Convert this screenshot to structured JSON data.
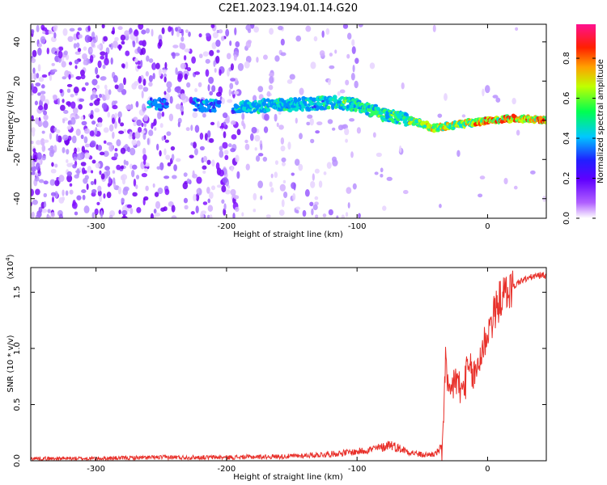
{
  "title": "C2E1.2023.194.01.14.G20",
  "chart_data": [
    {
      "type": "heatmap",
      "xlabel": "Height of straight line (km)",
      "ylabel": "Frequency (Hz)",
      "xlim": [
        -350,
        45
      ],
      "ylim": [
        -50,
        49
      ],
      "xticks": [
        -300,
        -200,
        -100,
        0
      ],
      "xtick_labels": [
        "-300",
        "-200",
        "-100",
        "0"
      ],
      "yticks": [
        -40,
        -20,
        0,
        20,
        40
      ],
      "ytick_labels": [
        "-40",
        "-20",
        "0",
        "20",
        "40"
      ],
      "colorbar": {
        "label": "Normalized spectral amplitude",
        "range": [
          0,
          0.97
        ],
        "ticks": [
          0.0,
          0.2,
          0.4,
          0.6,
          0.8
        ],
        "tick_labels": [
          "0.0",
          "0.2",
          "0.4",
          "0.6",
          "0.8"
        ],
        "colormap": [
          "#ffffff",
          "#8a00ff",
          "#3000ff",
          "#00c0ff",
          "#00ff40",
          "#ffff00",
          "#ff8000",
          "#ff0000",
          "#ff1090"
        ]
      },
      "ridge": {
        "x": [
          -265,
          -220,
          -180,
          -150,
          -120,
          -100,
          -80,
          -60,
          -40,
          -20,
          0,
          20,
          45
        ],
        "y": [
          8,
          8,
          7,
          8,
          9,
          8,
          3,
          0,
          -4,
          -2,
          0,
          1,
          0
        ]
      }
    },
    {
      "type": "line",
      "xlabel": "Height of straight line (km)",
      "ylabel": "SNR (10 * v/v)",
      "y_multiplier": "(x10",
      "y_multiplier_exp": "4",
      "y_multiplier_close": ")",
      "xlim": [
        -350,
        45
      ],
      "ylim": [
        0,
        1.72
      ],
      "xticks": [
        -300,
        -200,
        -100,
        0
      ],
      "xtick_labels": [
        "-300",
        "-200",
        "-100",
        "0"
      ],
      "yticks": [
        0.0,
        0.5,
        1.0,
        1.5
      ],
      "ytick_labels": [
        "0.0",
        "0.5",
        "1.0",
        "1.5"
      ],
      "series": [
        {
          "color": "#e8302a",
          "x": [
            -350,
            -300,
            -250,
            -200,
            -150,
            -120,
            -100,
            -90,
            -80,
            -75,
            -70,
            -60,
            -50,
            -40,
            -35,
            -32,
            -30,
            -25,
            -20,
            -15,
            -10,
            -5,
            0,
            5,
            10,
            15,
            20,
            25,
            30,
            35,
            40,
            45
          ],
          "y": [
            0.02,
            0.02,
            0.03,
            0.03,
            0.04,
            0.06,
            0.08,
            0.1,
            0.12,
            0.15,
            0.12,
            0.08,
            0.05,
            0.06,
            0.12,
            0.9,
            0.5,
            0.75,
            0.6,
            0.8,
            0.75,
            0.95,
            1.15,
            1.3,
            1.45,
            1.5,
            1.55,
            1.6,
            1.62,
            1.64,
            1.65,
            1.65
          ]
        }
      ]
    }
  ]
}
